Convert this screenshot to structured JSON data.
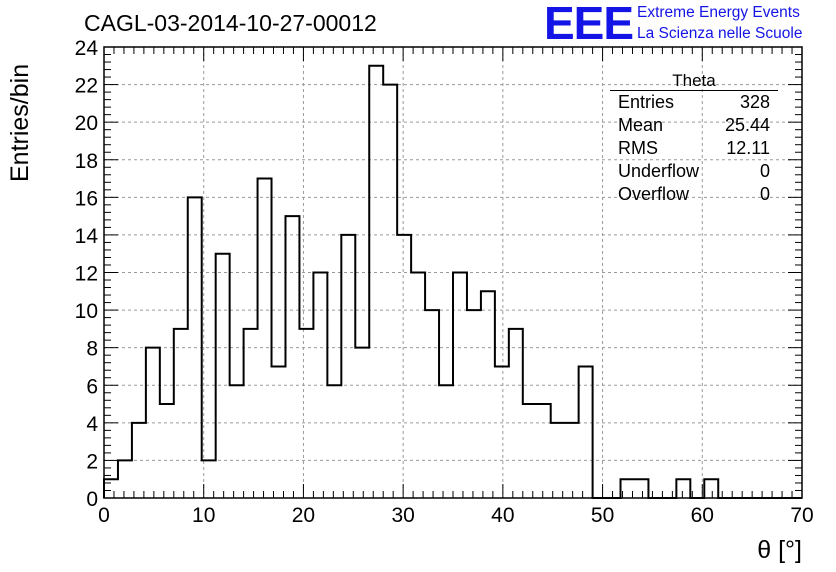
{
  "chart_data": {
    "type": "bar",
    "title": "CAGL-03-2014-10-27-00012",
    "xlabel": "θ [°]",
    "ylabel": "Entries/bin",
    "xlim": [
      0,
      70
    ],
    "ylim": [
      0,
      24
    ],
    "bin_width": 1.4,
    "x_ticks": [
      "0",
      "10",
      "20",
      "30",
      "40",
      "50",
      "60",
      "70"
    ],
    "y_ticks": [
      "0",
      "2",
      "4",
      "6",
      "8",
      "10",
      "12",
      "14",
      "16",
      "18",
      "20",
      "22",
      "24"
    ],
    "grid": true,
    "values": [
      1,
      2,
      4,
      8,
      5,
      9,
      16,
      2,
      13,
      6,
      9,
      17,
      7,
      15,
      9,
      12,
      6,
      14,
      8,
      23,
      22,
      14,
      12,
      10,
      6,
      12,
      10,
      11,
      7,
      9,
      5,
      5,
      4,
      4,
      7,
      0,
      0,
      1,
      1,
      0,
      0,
      1,
      0,
      1,
      0,
      0,
      0,
      0,
      0,
      0
    ],
    "stats": {
      "title": "Theta",
      "rows": [
        {
          "label": "Entries",
          "value": "328"
        },
        {
          "label": "Mean",
          "value": "25.44"
        },
        {
          "label": "RMS",
          "value": "12.11"
        },
        {
          "label": "Underflow",
          "value": "0"
        },
        {
          "label": "Overflow",
          "value": "0"
        }
      ]
    }
  },
  "logo": {
    "letters": "EEE",
    "line1": "Extreme Energy Events",
    "line2": "La Scienza nelle Scuole"
  },
  "colors": {
    "logo": "#1414e6",
    "histogram": "#000000",
    "grid": "#9a9a9a"
  }
}
